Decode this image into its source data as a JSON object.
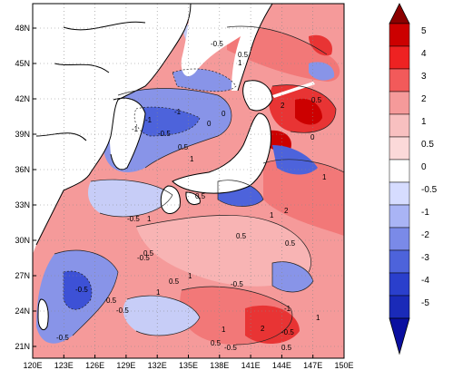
{
  "map": {
    "lon_ticks": [
      "120E",
      "123E",
      "126E",
      "129E",
      "132E",
      "135E",
      "138E",
      "141E",
      "144E",
      "147E",
      "150E"
    ],
    "lat_ticks": [
      "21N",
      "24N",
      "27N",
      "30N",
      "33N",
      "36N",
      "39N",
      "42N",
      "45N",
      "48N"
    ],
    "contour_labels": [
      "-0.5",
      "-1",
      "0",
      "0.5",
      "1",
      "2",
      "-1",
      "-0.5",
      "0.5",
      "1",
      "-1",
      "0",
      "-0.5",
      "1",
      "0.5",
      "-0.5",
      "2",
      "1",
      "0.5",
      "-0.5",
      "1",
      "0.5",
      "-0.5",
      "-1",
      "-0.5",
      "1",
      "0.5",
      "1",
      "-0.5",
      "0.5",
      "-0.5",
      "0",
      "1",
      "0.5",
      "0.5",
      "2",
      "1",
      "-0.5",
      "0.5",
      "0.5"
    ]
  },
  "colorbar": {
    "labels": [
      "5",
      "4",
      "3",
      "2",
      "1",
      "0.5",
      "0",
      "-0.5",
      "-1",
      "-2",
      "-3",
      "-4",
      "-5"
    ],
    "colors": [
      "#8b0000",
      "#cc0000",
      "#ee2222",
      "#f25a5a",
      "#f59a9a",
      "#fbd1d1",
      "#ffffff",
      "#d6dcff",
      "#a9b4f5",
      "#7a8ae8",
      "#4d63db",
      "#2a3fcc",
      "#0a0fa0"
    ]
  },
  "palette": {
    "strong_pos": "#e83434",
    "pos": "#f27878",
    "weak_pos": "#f8b4b4",
    "neutral": "#ffffff",
    "weak_neg": "#c7cdf7",
    "neg": "#8894e8",
    "strong_neg": "#3d51d6",
    "land": "#ffffff"
  }
}
